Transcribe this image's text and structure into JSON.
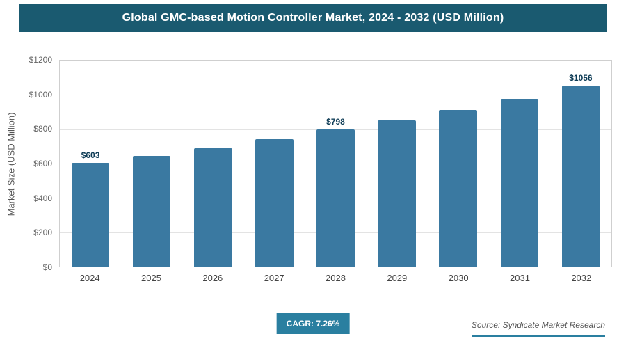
{
  "header": {
    "title": "Global GMC-based Motion Controller Market, 2024 - 2032 (USD Million)"
  },
  "footer": {
    "cagr_label": "CAGR: 7.26%",
    "source": "Source: Syndicate Market Research"
  },
  "colors": {
    "header_bg": "#1a5a70",
    "bar": "#3a79a1",
    "badge_bg": "#2a7fa0",
    "grid": "#e3e3e3",
    "value_label": "#0d3b55",
    "accent_line": "#2a7fa0"
  },
  "chart_data": {
    "type": "bar",
    "title": "Global GMC-based Motion Controller Market, 2024 - 2032 (USD Million)",
    "xlabel": "",
    "ylabel": "Market Size (USD Million)",
    "categories": [
      "2024",
      "2025",
      "2026",
      "2027",
      "2028",
      "2029",
      "2030",
      "2031",
      "2032"
    ],
    "values": [
      603,
      643,
      690,
      740,
      798,
      851,
      913,
      979,
      1056
    ],
    "data_labels": [
      "$603",
      null,
      null,
      null,
      "$798",
      null,
      null,
      null,
      "$1056"
    ],
    "ylim": [
      0,
      1200
    ],
    "yticks": [
      0,
      200,
      400,
      600,
      800,
      1000,
      1200
    ],
    "ytick_labels": [
      "$0",
      "$200",
      "$400",
      "$600",
      "$800",
      "$1000",
      "$1200"
    ],
    "grid": true,
    "legend": false,
    "cagr": "7.26%"
  }
}
